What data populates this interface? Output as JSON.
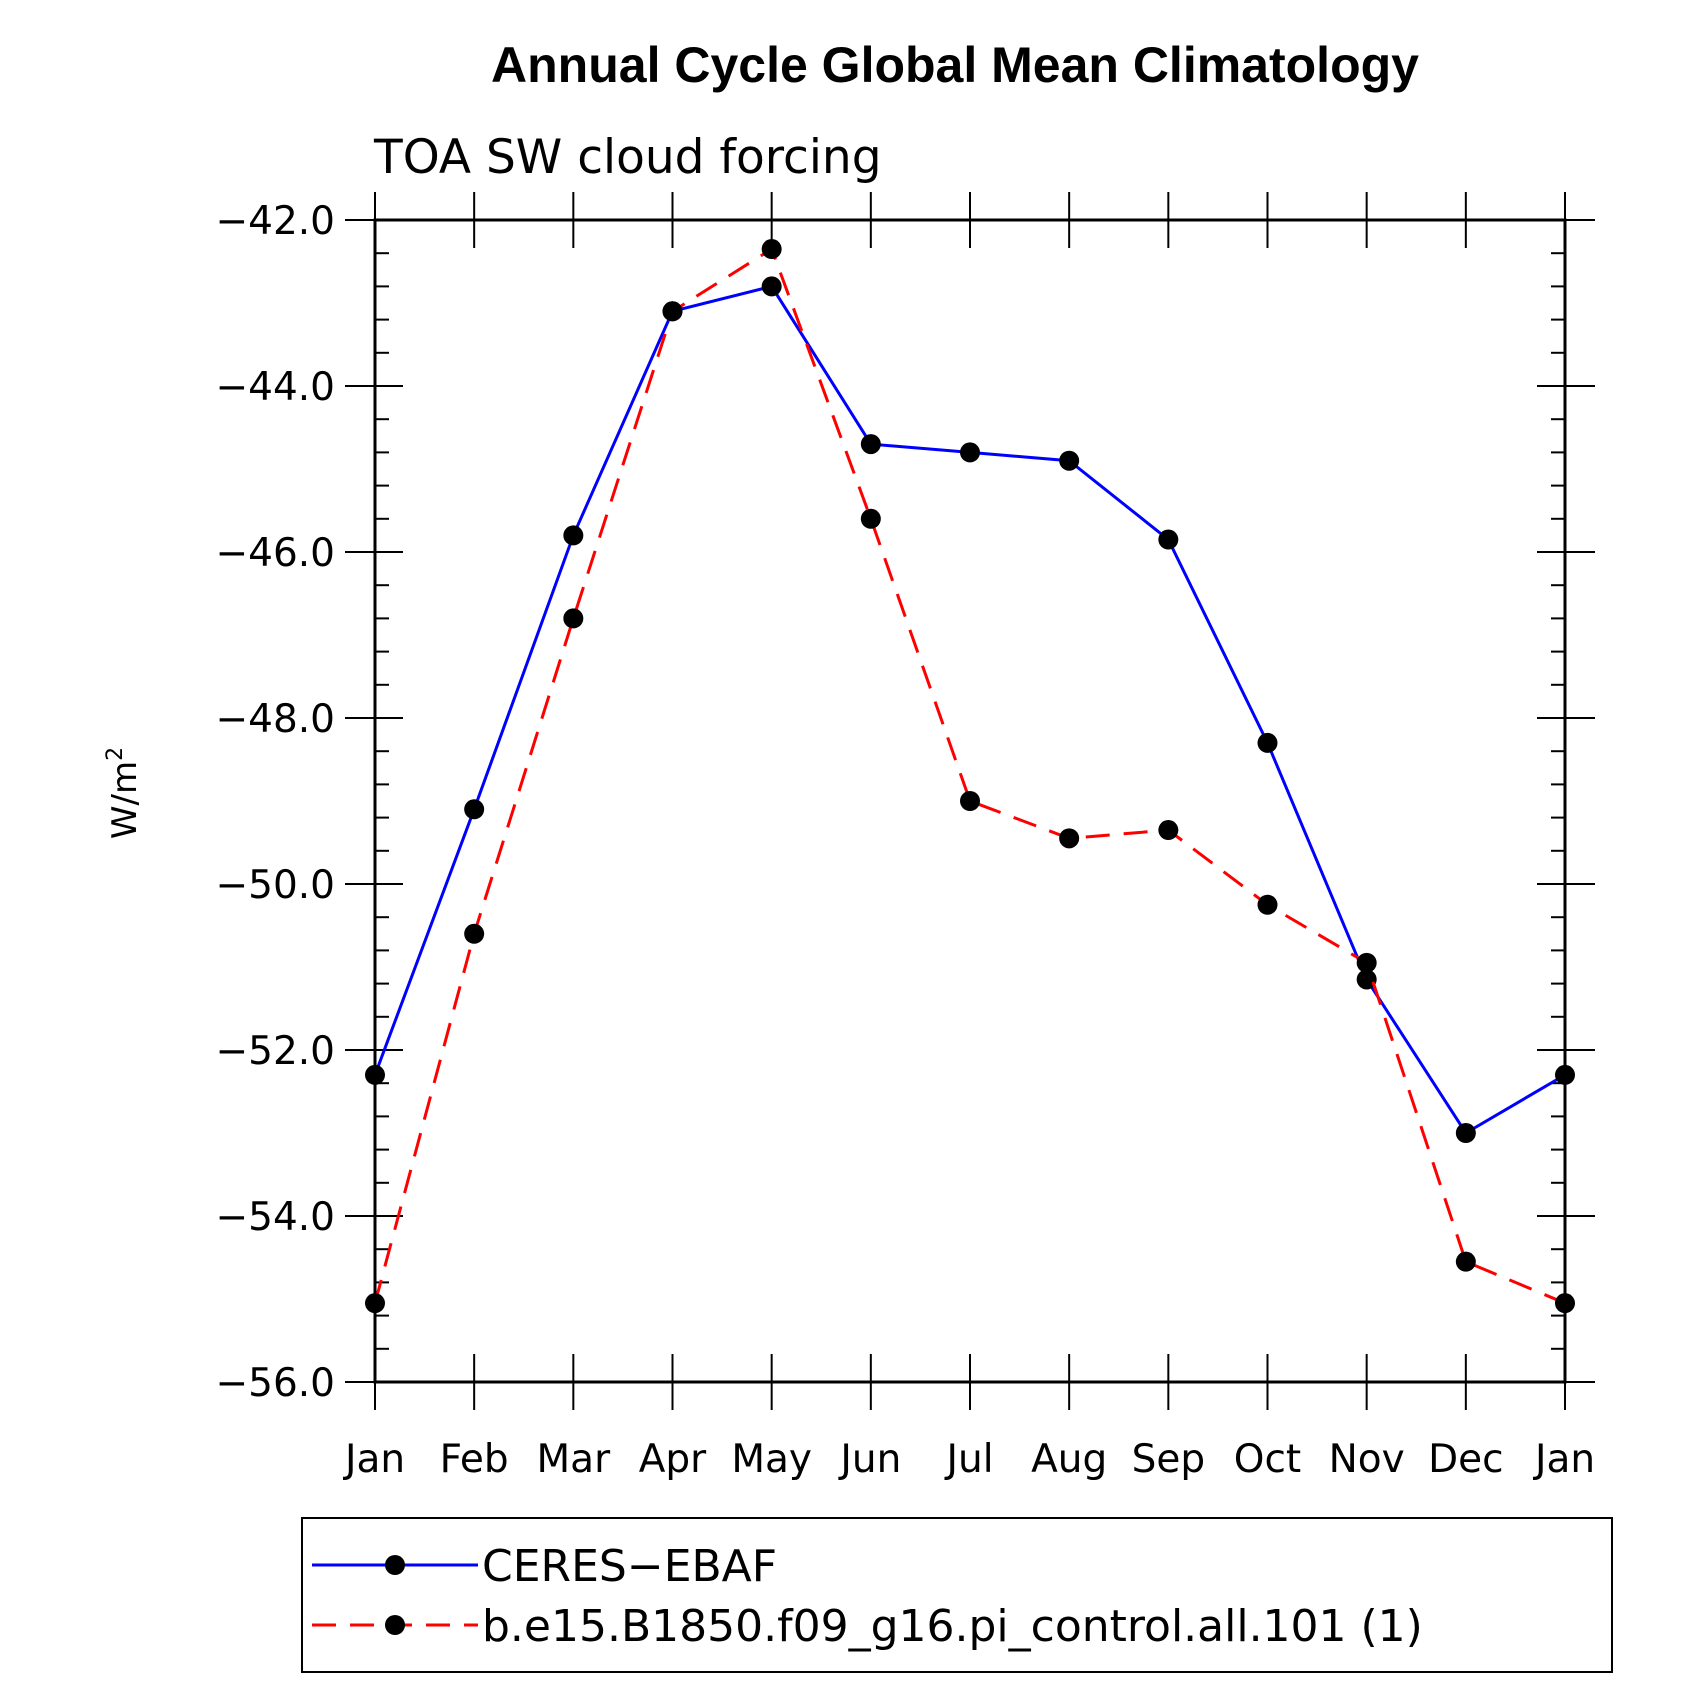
{
  "chart_data": {
    "type": "line",
    "title": "Annual Cycle Global Mean Climatology",
    "subtitle": "TOA SW cloud forcing",
    "xlabel": "",
    "ylabel": "W/m",
    "ylabel_superscript": "2",
    "categories": [
      "Jan",
      "Feb",
      "Mar",
      "Apr",
      "May",
      "Jun",
      "Jul",
      "Aug",
      "Sep",
      "Oct",
      "Nov",
      "Dec",
      "Jan"
    ],
    "ylim": [
      -56.0,
      -42.0
    ],
    "yticks": [
      -42.0,
      -44.0,
      -46.0,
      -48.0,
      -50.0,
      -52.0,
      -54.0,
      -56.0
    ],
    "ytick_labels": [
      "−42.0",
      "−44.0",
      "−46.0",
      "−48.0",
      "−50.0",
      "−52.0",
      "−54.0",
      "−56.0"
    ],
    "grid": false,
    "legend_position": "bottom",
    "series": [
      {
        "name": "CERES−EBAF",
        "color": "#0000ff",
        "dash": "solid",
        "marker": "filled-circle",
        "values": [
          -52.3,
          -49.1,
          -45.8,
          -43.1,
          -42.8,
          -44.7,
          -44.8,
          -44.9,
          -45.85,
          -48.3,
          -51.15,
          -53.0,
          -52.3
        ]
      },
      {
        "name": "b.e15.B1850.f09_g16.pi_control.all.101 (1)",
        "color": "#ff0000",
        "dash": "dashed",
        "marker": "filled-circle",
        "values": [
          -55.05,
          -50.6,
          -46.8,
          -43.1,
          -42.35,
          -45.6,
          -49.0,
          -49.45,
          -49.35,
          -50.25,
          -50.95,
          -54.55,
          -55.05
        ]
      }
    ]
  }
}
